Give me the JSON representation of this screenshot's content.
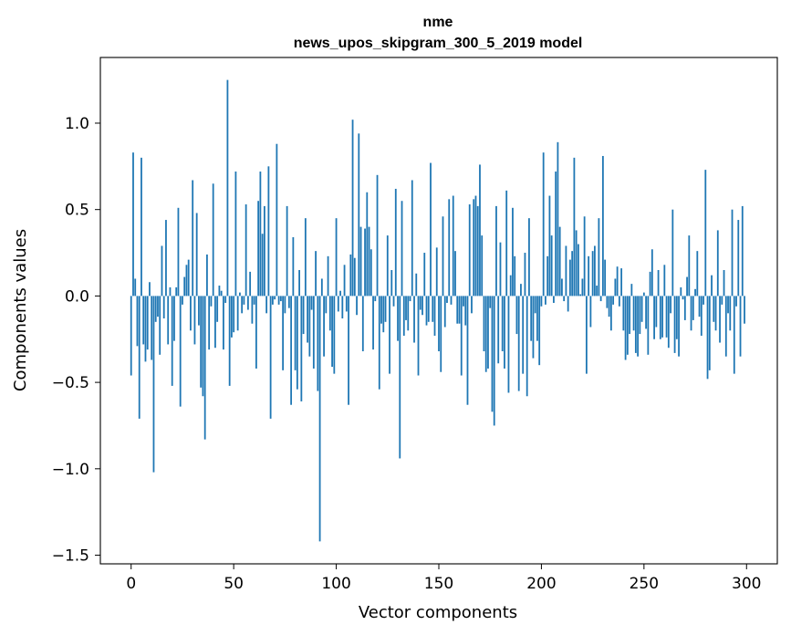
{
  "chart_data": {
    "type": "bar",
    "title": [
      "nme",
      "news_upos_skipgram_300_5_2019 model"
    ],
    "xlabel": "Vector components",
    "ylabel": "Components values",
    "xlim": [
      -15,
      315
    ],
    "ylim": [
      -1.55,
      1.38
    ],
    "xticks": [
      0,
      50,
      100,
      150,
      200,
      250,
      300
    ],
    "yticks": [
      -1.5,
      -1.0,
      -0.5,
      0.0,
      0.5,
      1.0
    ],
    "ytick_labels": [
      "−1.5",
      "−1.0",
      "−0.5",
      "0.0",
      "0.5",
      "1.0"
    ],
    "grid": false,
    "legend": "none",
    "bar_color": "#1f77b4",
    "x": "indices 0-299",
    "values": [
      -0.46,
      0.83,
      0.1,
      -0.29,
      -0.71,
      0.8,
      -0.28,
      -0.38,
      -0.31,
      0.08,
      -0.37,
      -1.02,
      -0.15,
      -0.12,
      -0.34,
      0.29,
      -0.13,
      0.44,
      -0.28,
      0.05,
      -0.52,
      -0.26,
      0.05,
      0.51,
      -0.64,
      -0.05,
      0.11,
      0.18,
      0.21,
      -0.2,
      0.67,
      -0.28,
      0.48,
      -0.17,
      -0.53,
      -0.58,
      -0.83,
      0.24,
      -0.31,
      -0.06,
      0.65,
      -0.3,
      -0.15,
      0.06,
      0.03,
      -0.31,
      -0.04,
      1.25,
      -0.52,
      -0.24,
      -0.21,
      0.72,
      -0.2,
      0.02,
      -0.1,
      -0.05,
      0.53,
      -0.08,
      0.14,
      -0.16,
      -0.05,
      -0.42,
      0.55,
      0.72,
      0.36,
      0.52,
      -0.1,
      0.75,
      -0.71,
      -0.05,
      -0.02,
      0.88,
      -0.05,
      -0.03,
      -0.43,
      -0.1,
      0.52,
      -0.07,
      -0.63,
      0.34,
      -0.43,
      -0.54,
      0.15,
      -0.61,
      -0.22,
      0.45,
      -0.27,
      -0.35,
      -0.08,
      -0.42,
      0.26,
      -0.55,
      -1.42,
      0.1,
      -0.35,
      -0.1,
      0.23,
      -0.2,
      -0.41,
      -0.45,
      0.45,
      -0.09,
      0.03,
      -0.13,
      0.18,
      -0.09,
      -0.63,
      0.24,
      1.02,
      0.22,
      -0.11,
      0.94,
      0.4,
      -0.32,
      0.39,
      0.6,
      0.4,
      0.27,
      -0.31,
      -0.03,
      0.7,
      -0.54,
      -0.16,
      -0.21,
      -0.15,
      0.35,
      -0.45,
      0.15,
      -0.06,
      0.62,
      -0.26,
      -0.94,
      0.55,
      -0.23,
      -0.14,
      -0.2,
      -0.03,
      0.67,
      -0.27,
      0.13,
      -0.46,
      -0.08,
      -0.11,
      0.25,
      -0.17,
      -0.15,
      0.77,
      -0.15,
      -0.23,
      0.28,
      -0.32,
      -0.44,
      0.46,
      -0.18,
      -0.04,
      0.56,
      -0.05,
      0.58,
      0.26,
      -0.16,
      -0.16,
      -0.46,
      -0.06,
      -0.17,
      -0.63,
      0.53,
      -0.1,
      0.56,
      0.58,
      0.52,
      0.76,
      0.35,
      -0.32,
      -0.44,
      -0.42,
      -0.07,
      -0.67,
      -0.75,
      0.52,
      -0.39,
      0.31,
      -0.32,
      -0.42,
      0.61,
      -0.56,
      0.12,
      0.51,
      0.23,
      -0.22,
      -0.55,
      0.07,
      -0.45,
      0.25,
      -0.58,
      0.45,
      -0.26,
      -0.36,
      -0.1,
      -0.26,
      -0.4,
      -0.06,
      0.83,
      -0.05,
      0.23,
      0.58,
      0.35,
      -0.04,
      0.72,
      0.89,
      0.4,
      0.1,
      -0.03,
      0.29,
      -0.09,
      0.21,
      0.26,
      0.8,
      0.38,
      0.3,
      0.01,
      0.1,
      0.46,
      -0.45,
      0.23,
      -0.18,
      0.26,
      0.29,
      0.06,
      0.45,
      -0.03,
      0.81,
      0.21,
      -0.07,
      -0.12,
      -0.2,
      -0.05,
      0.1,
      0.17,
      -0.06,
      0.16,
      -0.2,
      -0.37,
      -0.34,
      -0.22,
      0.07,
      -0.2,
      -0.33,
      -0.35,
      -0.22,
      -0.15,
      0.02,
      -0.19,
      -0.34,
      0.14,
      0.27,
      -0.25,
      -0.18,
      0.15,
      -0.25,
      -0.24,
      0.18,
      -0.24,
      -0.3,
      -0.1,
      0.5,
      -0.33,
      -0.25,
      -0.35,
      0.05,
      -0.02,
      -0.14,
      0.11,
      0.35,
      -0.2,
      -0.14,
      0.04,
      0.26,
      -0.12,
      -0.23,
      -0.05,
      0.73,
      -0.48,
      -0.43,
      0.12,
      -0.15,
      -0.2,
      0.38,
      -0.27,
      -0.05,
      0.15,
      -0.35,
      -0.1,
      -0.2,
      0.5,
      -0.45,
      -0.06,
      0.44,
      -0.35,
      0.52,
      -0.16
    ]
  }
}
